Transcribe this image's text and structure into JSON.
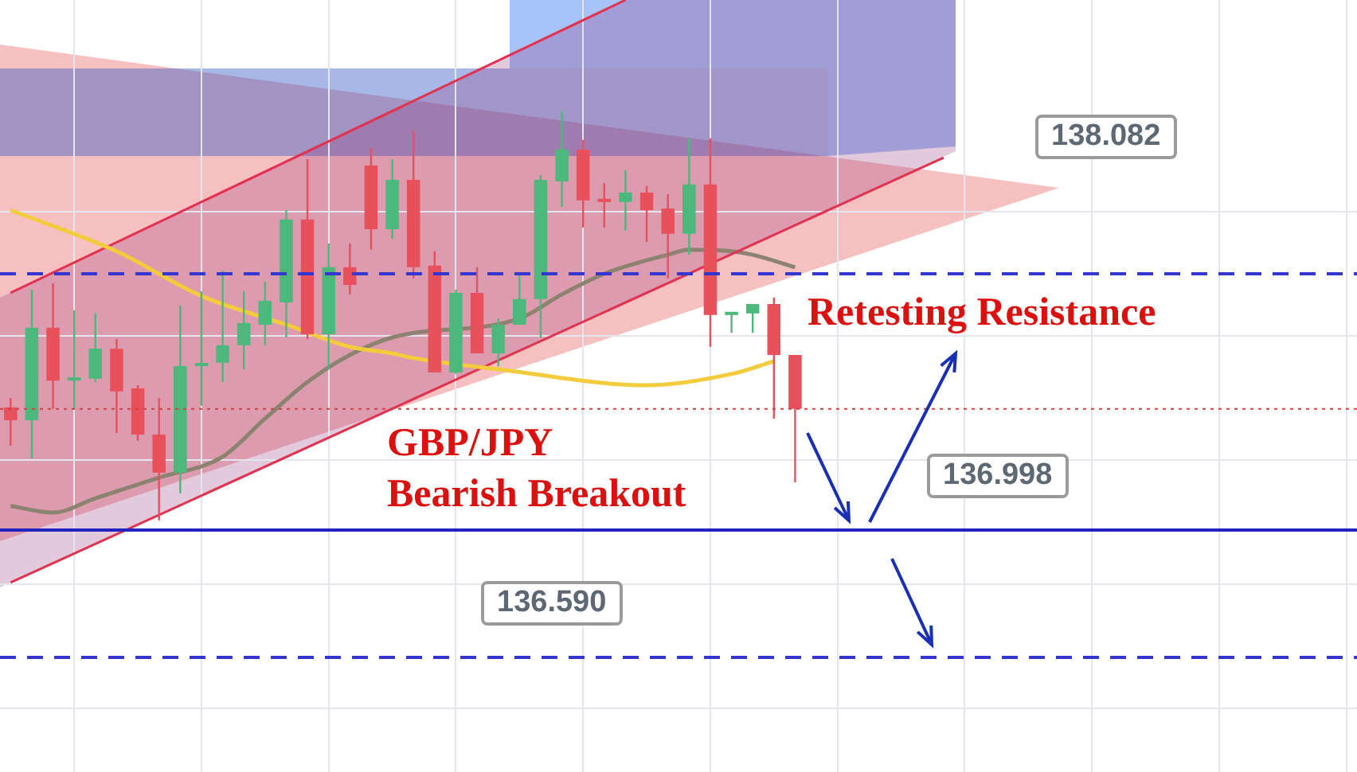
{
  "chart_data": {
    "type": "candlestick",
    "categories": [
      null,
      null,
      null,
      null,
      null,
      null,
      null,
      null,
      null,
      null,
      null,
      null,
      null,
      null,
      null,
      null,
      null,
      null,
      null,
      null,
      null,
      null,
      null,
      null,
      null,
      null,
      null,
      null,
      null,
      null,
      null,
      null,
      null,
      null,
      null,
      null,
      null,
      null,
      null,
      null,
      null,
      null,
      null,
      null,
      null,
      null,
      null,
      null,
      null,
      null,
      null,
      null,
      null,
      null,
      null,
      null,
      null,
      null,
      null,
      null,
      null,
      null,
      null,
      null
    ],
    "ohlc": [
      [
        137.391,
        137.421,
        137.268,
        137.35
      ],
      [
        137.35,
        137.768,
        137.228,
        137.646
      ],
      [
        137.646,
        137.789,
        137.386,
        137.477
      ],
      [
        137.477,
        137.702,
        137.386,
        137.483
      ],
      [
        137.483,
        137.692,
        137.472,
        137.579
      ],
      [
        137.579,
        137.61,
        137.309,
        137.442
      ],
      [
        137.452,
        137.462,
        137.284,
        137.304
      ],
      [
        137.304,
        137.421,
        137.029,
        137.182
      ],
      [
        137.182,
        137.717,
        137.115,
        137.523
      ],
      [
        137.523,
        137.763,
        137.396,
        137.528
      ],
      [
        137.534,
        137.829,
        137.472,
        137.59
      ],
      [
        137.59,
        137.763,
        137.513,
        137.661
      ],
      [
        137.656,
        137.794,
        137.59,
        137.732
      ],
      [
        137.727,
        138.023,
        137.615,
        137.993
      ],
      [
        137.993,
        138.186,
        137.61,
        137.625
      ],
      [
        137.625,
        137.916,
        137.513,
        137.84
      ],
      [
        137.84,
        137.916,
        137.753,
        137.783
      ],
      [
        138.166,
        138.222,
        137.896,
        137.962
      ],
      [
        137.962,
        138.186,
        137.931,
        138.12
      ],
      [
        138.12,
        138.278,
        137.804,
        137.84
      ],
      [
        137.845,
        137.891,
        137.503,
        137.503
      ],
      [
        137.503,
        137.768,
        137.498,
        137.758
      ],
      [
        137.758,
        137.84,
        137.564,
        137.564
      ],
      [
        137.564,
        137.676,
        137.523,
        137.656
      ],
      [
        137.656,
        137.814,
        137.656,
        137.738
      ],
      [
        137.738,
        138.135,
        137.615,
        138.12
      ],
      [
        138.115,
        138.339,
        138.033,
        138.217
      ],
      [
        138.217,
        138.248,
        137.967,
        138.054
      ],
      [
        138.054,
        138.11,
        137.967,
        138.049
      ],
      [
        138.049,
        138.151,
        137.957,
        138.079
      ],
      [
        138.079,
        138.1,
        137.921,
        138.023
      ],
      [
        138.028,
        138.074,
        137.804,
        137.947
      ],
      [
        137.947,
        138.253,
        137.88,
        138.105
      ],
      [
        138.105,
        138.253,
        137.585,
        137.687
      ],
      [
        137.687,
        137.692,
        137.63,
        137.692
      ],
      [
        137.692,
        137.722,
        137.63,
        137.722
      ],
      [
        137.722,
        137.743,
        137.355,
        137.559
      ],
      [
        137.559,
        137.559,
        137.151,
        137.386
      ],
      null,
      null,
      null,
      null,
      null,
      null,
      null,
      null,
      null,
      null,
      null,
      null,
      null,
      null,
      null,
      null,
      null,
      null,
      null,
      null,
      null,
      null,
      null,
      null,
      null,
      null
    ],
    "colors": [
      "#e8505b",
      "#4cb87c",
      "#e8505b",
      "#4cb87c",
      "#4cb87c",
      "#e8505b",
      "#e8505b",
      "#e8505b",
      "#4cb87c",
      "#4cb87c",
      "#4cb87c",
      "#4cb87c",
      "#4cb87c",
      "#4cb87c",
      "#e8505b",
      "#4cb87c",
      "#e8505b",
      "#e8505b",
      "#4cb87c",
      "#e8505b",
      "#e8505b",
      "#4cb87c",
      "#e8505b",
      "#4cb87c",
      "#4cb87c",
      "#4cb87c",
      "#4cb87c",
      "#e8505b",
      "#e8505b",
      "#4cb87c",
      "#e8505b",
      "#e8505b",
      "#4cb87c",
      "#e8505b",
      "#4cb87c",
      "#4cb87c",
      "#e8505b",
      "#e8505b",
      null,
      null,
      null,
      null,
      null,
      null,
      null,
      null,
      null,
      null,
      null,
      null,
      null,
      null,
      null,
      null,
      null,
      null,
      null,
      null,
      null,
      null,
      null,
      null,
      null,
      null
    ],
    "series": [
      {
        "type": "line",
        "color": "#f2cc3c",
        "values": [
          138.023,
          null,
          null,
          null,
          null,
          137.891,
          null,
          null,
          null,
          137.748,
          null,
          null,
          null,
          137.656,
          null,
          null,
          137.585,
          null,
          137.564,
          137.549,
          null,
          null,
          null,
          137.513,
          null,
          null,
          null,
          null,
          null,
          null,
          137.462,
          null,
          null,
          null,
          137.498,
          null,
          137.539,
          null,
          null,
          null,
          null,
          null,
          null,
          null,
          null,
          null,
          null,
          null,
          null,
          null,
          null,
          null,
          null,
          null,
          null,
          null,
          null,
          null,
          null,
          null,
          null,
          null,
          null,
          null
        ]
      },
      {
        "type": "line",
        "color": "#e13250",
        "values": [
          137.758,
          null,
          null,
          null,
          null,
          null,
          null,
          null,
          null,
          null,
          null,
          null,
          null,
          null,
          null,
          null,
          null,
          null,
          null,
          null,
          null,
          null,
          null,
          null,
          null,
          null,
          null,
          null,
          null,
          138.696,
          null,
          null,
          null,
          null,
          null,
          null,
          null,
          null,
          null,
          null,
          null,
          null,
          null,
          null,
          null,
          null,
          null,
          null,
          null,
          null,
          null,
          null,
          null,
          null,
          null,
          null,
          null,
          null,
          null,
          null,
          null,
          null,
          null,
          null
        ]
      },
      {
        "type": "line",
        "color": "#e13250",
        "values": [
          136.83,
          null,
          null,
          null,
          null,
          null,
          null,
          null,
          null,
          null,
          null,
          null,
          null,
          null,
          null,
          null,
          null,
          null,
          null,
          null,
          null,
          null,
          null,
          null,
          null,
          null,
          null,
          null,
          null,
          null,
          null,
          null,
          null,
          null,
          null,
          null,
          null,
          null,
          null,
          null,
          null,
          null,
          null,
          null,
          138.191,
          null,
          null,
          null,
          null,
          null,
          null,
          null,
          null,
          null,
          null,
          null,
          null,
          null,
          null,
          null,
          null,
          null,
          null,
          null
        ]
      },
      {
        "type": "line",
        "color": "#8c8270",
        "values": [
          137.075,
          null,
          137.054,
          null,
          137.1,
          null,
          null,
          137.166,
          null,
          null,
          137.233,
          null,
          137.355,
          null,
          137.472,
          null,
          137.559,
          null,
          137.615,
          null,
          null,
          null,
          null,
          null,
          137.676,
          null,
          137.753,
          null,
          137.819,
          null,
          null,
          137.88,
          137.896,
          null,
          137.891,
          137.88,
          null,
          137.84,
          null,
          null,
          null,
          null,
          null,
          null,
          null,
          null,
          null,
          null,
          null,
          null,
          null,
          null,
          null,
          null,
          null,
          null,
          null,
          null,
          null,
          null,
          null,
          null,
          null,
          null
        ]
      }
    ],
    "ylim": [
      136.223,
      138.696
    ],
    "yticks": [
      {
        "value": 138.018,
        "label": null
      },
      {
        "value": 137.62,
        "label": null
      },
      {
        "value": 137.222,
        "label": null
      },
      {
        "value": 136.825,
        "label": null
      },
      {
        "value": 136.427,
        "label": null
      }
    ],
    "grid": true,
    "ref_lines": [
      {
        "axis": "y",
        "value": 137.819,
        "color": "#3535d0",
        "line_style": "dashed"
      },
      {
        "axis": "y",
        "value": 136.998,
        "label": "136.998",
        "color": "#2222c0",
        "line_style": "solid"
      },
      {
        "axis": "y",
        "value": 136.59,
        "label": "136.590",
        "color": "#3535d0",
        "line_style": "dashed"
      },
      {
        "axis": "y",
        "value": 137.386,
        "color": "#d04040",
        "line_style": "dotted"
      }
    ],
    "annotations": [
      "138.082",
      "Retesting Resistance",
      "GBP/JPY\nBearish Breakout"
    ]
  }
}
